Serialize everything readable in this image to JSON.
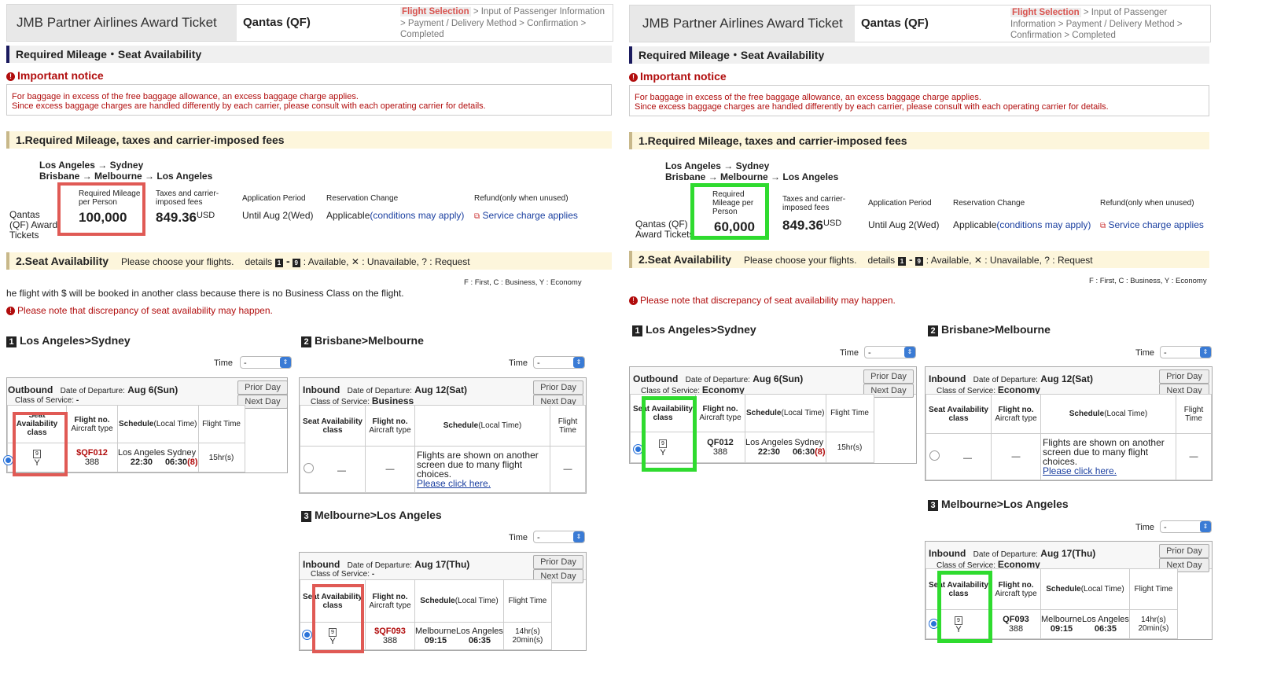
{
  "header": {
    "title": "JMB Partner Airlines Award Ticket",
    "carrier": "Qantas (QF)",
    "step_current": "Flight Selection",
    "steps_rest": "> Input of Passenger Information > Payment / Delivery Method > Confirmation > Completed"
  },
  "section_title": "Required Mileage・Seat Availability",
  "notice": {
    "title": "Important notice",
    "line1": "For baggage in excess of the free baggage allowance, an excess baggage charge applies.",
    "line2": "Since excess baggage charges are handled differently by each carrier, please consult with each operating carrier for details."
  },
  "mileage_section": {
    "title": "1.Required Mileage, taxes and carrier-imposed fees",
    "route_line1_a": "Los Angeles",
    "route_line1_b": "Sydney",
    "route_line2_a": "Brisbane",
    "route_line2_b": "Melbourne",
    "route_line2_c": "Los Angeles",
    "product": "Qantas (QF) Award Tickets",
    "col_mileage": "Required Mileage per Person",
    "col_taxes": "Taxes and carrier-imposed fees",
    "col_period": "Application Period",
    "col_change": "Reservation Change",
    "col_refund": "Refund(only when unused)",
    "taxes_value": "849.36",
    "taxes_unit": "USD",
    "period_value": "Until Aug 2(Wed)",
    "change_value": "Applicable",
    "change_link": "(conditions may apply)",
    "refund_value": "Service charge applies"
  },
  "seat_section": {
    "title": "2.Seat Availability",
    "choose": "Please choose your flights.",
    "details": "details",
    "legend": ": Available,  ✕ : Unavailable,  ? : Request",
    "classes": "F : First, C : Business, Y : Economy",
    "no_business_note": "he flight with $ will be booked in another class because there is no Business Class on the flight.",
    "discrepancy": "Please note that discrepancy of seat availability may happen."
  },
  "labels": {
    "time": "Time",
    "time_value": "-",
    "prior_day": "Prior Day",
    "next_day": "Next Day",
    "date_of_departure": "Date of Departure:",
    "class_of_service": "Class of Service:",
    "th_seat": "Seat Availability class",
    "th_flight": "Flight no.",
    "th_aircraft": "Aircraft type",
    "th_schedule": "Schedule",
    "th_schedule_local": "(Local Time)",
    "th_flight_time": "Flight Time",
    "outbound": "Outbound",
    "inbound": "Inbound",
    "many_flights": "Flights are shown on another screen due to many flight choices.",
    "click_here": "Please click here.",
    "dash": "—"
  },
  "left": {
    "mileage": "100,000",
    "seg1": {
      "num": "1",
      "title": "Los Angeles>Sydney",
      "date": "Aug 6(Sun)",
      "cls": "-",
      "seat": "Y",
      "flight": "$QF012",
      "aircraft": "388",
      "from": "Los Angeles",
      "from_time": "22:30",
      "to": "Sydney",
      "to_time": "06:30",
      "plus": "(8)",
      "ftime": "15hr(s)"
    },
    "seg2": {
      "num": "2",
      "title": "Brisbane>Melbourne",
      "date": "Aug 12(Sat)",
      "cls": "Business"
    },
    "seg3": {
      "num": "3",
      "title": "Melbourne>Los Angeles",
      "date": "Aug 17(Thu)",
      "cls": "-",
      "seat": "Y",
      "flight": "$QF093",
      "aircraft": "388",
      "from": "Melbourne",
      "from_time": "09:15",
      "to": "Los Angeles",
      "to_time": "06:35",
      "ftime1": "14hr(s)",
      "ftime2": "20min(s)"
    }
  },
  "right": {
    "mileage": "60,000",
    "seg1": {
      "num": "1",
      "title": "Los Angeles>Sydney",
      "date": "Aug 6(Sun)",
      "cls": "Economy",
      "seat": "Y",
      "flight": "QF012",
      "aircraft": "388",
      "from": "Los Angeles",
      "from_time": "22:30",
      "to": "Sydney",
      "to_time": "06:30",
      "plus": "(8)",
      "ftime": "15hr(s)"
    },
    "seg2": {
      "num": "2",
      "title": "Brisbane>Melbourne",
      "date": "Aug 12(Sat)",
      "cls": "Economy"
    },
    "seg3": {
      "num": "3",
      "title": "Melbourne>Los Angeles",
      "date": "Aug 17(Thu)",
      "cls": "Economy",
      "seat": "Y",
      "flight": "QF093",
      "aircraft": "388",
      "from": "Melbourne",
      "from_time": "09:15",
      "to": "Los Angeles",
      "to_time": "06:35",
      "ftime1": "14hr(s)",
      "ftime2": "20min(s)"
    }
  },
  "colors": {
    "red_highlight": "#e05a55",
    "green_highlight": "#2fdb2f",
    "notice_red": "#b10d0d"
  }
}
